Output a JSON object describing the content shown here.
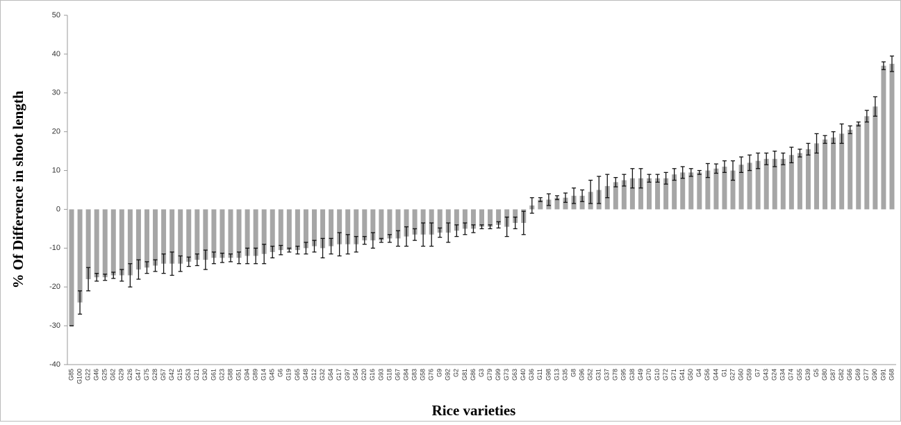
{
  "chart_data": {
    "type": "bar",
    "xlabel": "Rice varieties",
    "ylabel": "% Of Difference in shoot length",
    "categories": [
      "G85",
      "G100",
      "G22",
      "G46",
      "G25",
      "G62",
      "G29",
      "G26",
      "G47",
      "G75",
      "G28",
      "G57",
      "G42",
      "G15",
      "G53",
      "G21",
      "G30",
      "G61",
      "G23",
      "G88",
      "G51",
      "G94",
      "G89",
      "G14",
      "G45",
      "G6",
      "G19",
      "G65",
      "G48",
      "G12",
      "G32",
      "G64",
      "G17",
      "G97",
      "G54",
      "G20",
      "G16",
      "G93",
      "G18",
      "G67",
      "G84",
      "G83",
      "G58",
      "G76",
      "G9",
      "G92",
      "G2",
      "G81",
      "G86",
      "G3",
      "G79",
      "G99",
      "G73",
      "G63",
      "G40",
      "G36",
      "G11",
      "G98",
      "G13",
      "G35",
      "G8",
      "G96",
      "G52",
      "G31",
      "G37",
      "G78",
      "G95",
      "G38",
      "G49",
      "G70",
      "G10",
      "G72",
      "G71",
      "G41",
      "G50",
      "G4",
      "G56",
      "G44",
      "G1",
      "G27",
      "G60",
      "G59",
      "G7",
      "G43",
      "G24",
      "G34",
      "G74",
      "G55",
      "G39",
      "G5",
      "G80",
      "G87",
      "G82",
      "G66",
      "G69",
      "G77",
      "G90",
      "G91",
      "G68"
    ],
    "values": [
      -30,
      -24,
      -18,
      -17.5,
      -17.5,
      -17,
      -17,
      -17,
      -15.5,
      -15,
      -14.5,
      -14,
      -14,
      -14,
      -13.5,
      -13,
      -13,
      -12.5,
      -12.5,
      -12.5,
      -12.5,
      -12,
      -12,
      -11.5,
      -11,
      -10.5,
      -10.5,
      -10.5,
      -10,
      -9.5,
      -10,
      -9.5,
      -9,
      -9,
      -9,
      -8,
      -8,
      -8,
      -7.5,
      -7.5,
      -7,
      -6.5,
      -6.5,
      -6.5,
      -6,
      -6,
      -5.5,
      -5,
      -5,
      -4.5,
      -4.5,
      -4,
      -4.5,
      -3.5,
      -3.5,
      1,
      2.5,
      2.5,
      3,
      3,
      3.5,
      3.5,
      4.5,
      5,
      6,
      7,
      7.5,
      8,
      8,
      8,
      8,
      8,
      9,
      9.5,
      9.5,
      9.5,
      10,
      10.5,
      11,
      10,
      11.5,
      12,
      12.5,
      13,
      13,
      13,
      14,
      14.5,
      15.5,
      17,
      18,
      18.5,
      19.5,
      20.5,
      22,
      24,
      26.5,
      37,
      37.5
    ],
    "errors": [
      0,
      3,
      3,
      1,
      0.8,
      0.8,
      1.5,
      3,
      2.5,
      1.5,
      1.5,
      2.5,
      3,
      2,
      1.2,
      1.5,
      2.5,
      1.5,
      1.2,
      1,
      1.5,
      2,
      2,
      2.5,
      1.5,
      1.2,
      0.5,
      1,
      1.5,
      1.5,
      2.5,
      2,
      3,
      2.5,
      2,
      1,
      2,
      0.5,
      1,
      2,
      2.5,
      1.5,
      3,
      3,
      1.2,
      2.5,
      1.5,
      1.5,
      1,
      0.5,
      0.5,
      0.8,
      2.5,
      1.5,
      3,
      2,
      0.5,
      1.5,
      0.5,
      1.2,
      2,
      1.5,
      3,
      3.5,
      3,
      1.2,
      1.5,
      2.5,
      2.5,
      1,
      1,
      1.5,
      1.5,
      1.5,
      1,
      0.5,
      1.8,
      1.2,
      1.5,
      2.5,
      2,
      2,
      2,
      1.5,
      2,
      1.5,
      2,
      1,
      1.5,
      2.5,
      1,
      1.5,
      2.5,
      1,
      0.5,
      1.5,
      2.5,
      1,
      2
    ],
    "color": "#a6a6a6",
    "ylim": [
      -40,
      50
    ],
    "yticks": [
      -40,
      -30,
      -20,
      -10,
      0,
      10,
      20,
      30,
      40,
      50
    ]
  }
}
